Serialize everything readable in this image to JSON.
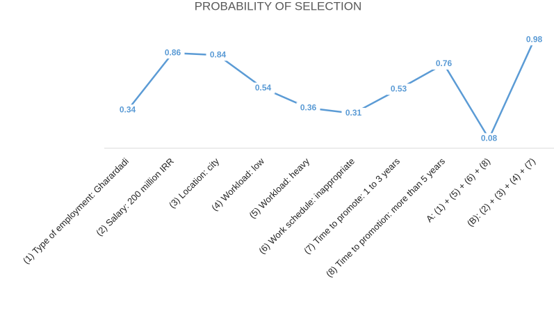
{
  "chart_data": {
    "type": "line",
    "title": "PROBABILITY OF SELECTION",
    "categories": [
      "(1) Type of employment: Gharardadi",
      "(2) Salary: 200 million IRR",
      "(3) Location: city",
      "(4) Workload: low",
      "(5) Workload: heavy",
      "(6) Work schedule: inappropriate",
      "(7) Time to promote: 1 to 3 years",
      "(8) Time to promotion: more than 5 years",
      "A: (1) + (5) + (6) + (8)",
      "(B): (2) + (3) + (4) + (7)"
    ],
    "values": [
      0.34,
      0.86,
      0.84,
      0.54,
      0.36,
      0.31,
      0.53,
      0.76,
      0.08,
      0.98
    ],
    "color": "#5b9bd5",
    "ylim": [
      0,
      1
    ]
  }
}
